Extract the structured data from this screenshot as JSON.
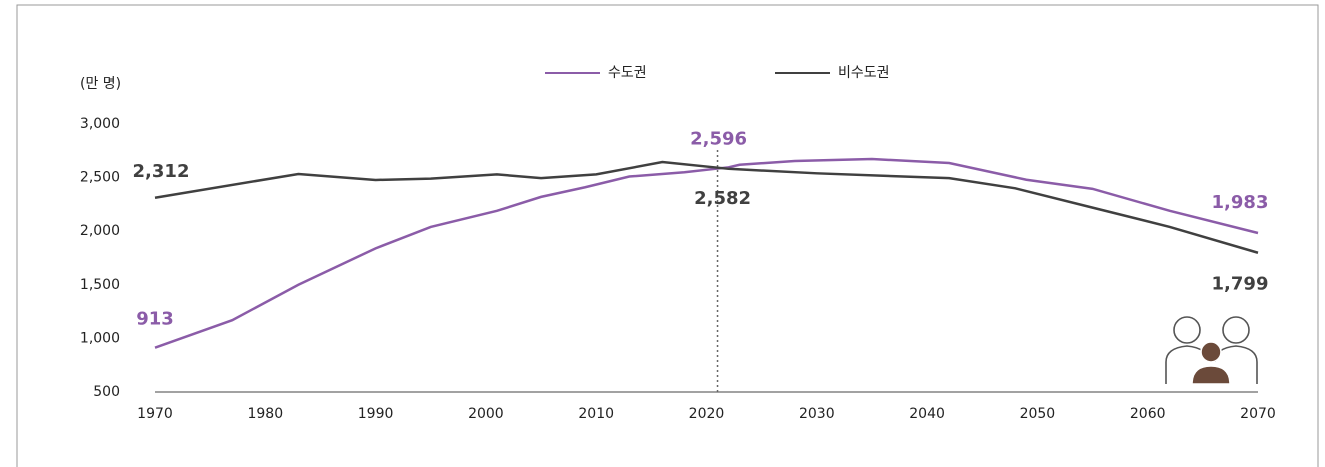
{
  "chart_data": {
    "type": "line",
    "y_label": "(만 명)",
    "series": [
      {
        "name": "수도권",
        "color": "#8b5ca8",
        "x": [
          1970,
          1977,
          1983,
          1990,
          1995,
          2001,
          2005,
          2009,
          2013,
          2018,
          2022,
          2023,
          2028,
          2035,
          2042,
          2049,
          2055,
          2062,
          2070
        ],
        "values": [
          913,
          1170,
          1500,
          1840,
          2040,
          2190,
          2320,
          2410,
          2510,
          2550,
          2596,
          2620,
          2655,
          2673,
          2636,
          2480,
          2395,
          2190,
          1983
        ],
        "value_labels": [
          "913",
          null,
          null,
          null,
          null,
          null,
          null,
          null,
          null,
          null,
          "2,596",
          null,
          null,
          null,
          null,
          null,
          null,
          null,
          "1,983"
        ]
      },
      {
        "name": "비수도권",
        "color": "#404040",
        "x": [
          1970,
          1983,
          1990,
          1995,
          2001,
          2005,
          2010,
          2016,
          2022,
          2030,
          2042,
          2048,
          2055,
          2062,
          2070
        ],
        "values": [
          2312,
          2534,
          2478,
          2490,
          2530,
          2495,
          2530,
          2645,
          2582,
          2540,
          2495,
          2400,
          2220,
          2040,
          1799
        ],
        "value_labels": [
          "2,312",
          null,
          null,
          null,
          null,
          null,
          null,
          null,
          "2,582",
          null,
          null,
          null,
          null,
          null,
          "1,799"
        ]
      }
    ],
    "vline_x": 2021,
    "xlim": [
      1970,
      2070
    ],
    "xticks": [
      1970,
      1980,
      1990,
      2000,
      2010,
      2020,
      2030,
      2040,
      2050,
      2060,
      2070
    ],
    "ylim": [
      500,
      3000
    ],
    "yticks": [
      {
        "value": 500,
        "label": "500"
      },
      {
        "value": 1000,
        "label": "1,000"
      },
      {
        "value": 1500,
        "label": "1,500"
      },
      {
        "value": 2000,
        "label": "2,000"
      },
      {
        "value": 2500,
        "label": "2,500"
      },
      {
        "value": 3000,
        "label": "3,000"
      }
    ]
  }
}
